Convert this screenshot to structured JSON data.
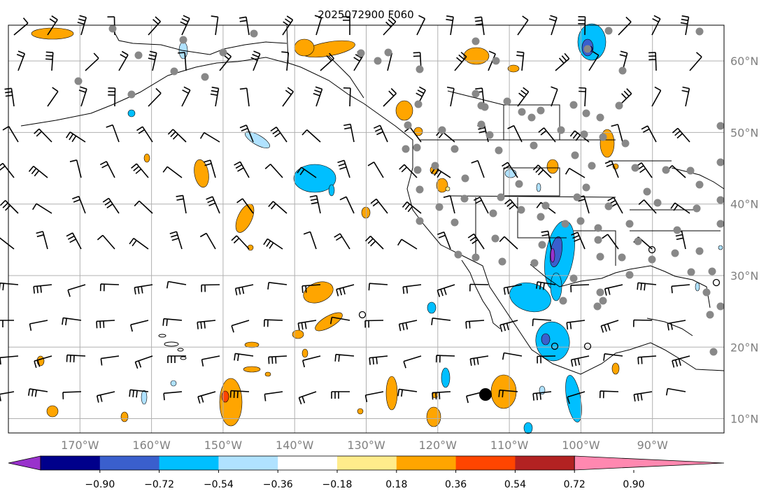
{
  "title": "2025072900 F060",
  "lat_labels": [
    "60°N",
    "50°N",
    "40°N",
    "30°N",
    "20°N",
    "10°N"
  ],
  "lon_labels": [
    "170°W",
    "160°W",
    "150°W",
    "140°W",
    "130°W",
    "120°W",
    "110°W",
    "100°W",
    "90°W"
  ],
  "colorbar": {
    "colors": [
      "#9932cc",
      "#00008b",
      "#3a5fcd",
      "#00bfff",
      "#b0e2ff",
      "#ffffff",
      "#ffec8b",
      "#ffa500",
      "#ff4500",
      "#b22222",
      "#ff88b0"
    ],
    "tick_labels": [
      "−0.90",
      "−0.72",
      "−0.54",
      "−0.36",
      "−0.18",
      "0.18",
      "0.36",
      "0.54",
      "0.72",
      "0.90"
    ]
  },
  "map_data": {
    "lon_range": [
      -180,
      -80
    ],
    "lat_range": [
      8,
      65
    ],
    "gridline_lons": [
      -170,
      -160,
      -150,
      -140,
      -130,
      -120,
      -110,
      -100,
      -90
    ],
    "gridline_lats": [
      10,
      20,
      30,
      40,
      50,
      60
    ],
    "colors": {
      "stations": "#888888",
      "barbs": "#000000",
      "coast": "#000000",
      "grid": "#b0b0b0"
    }
  }
}
